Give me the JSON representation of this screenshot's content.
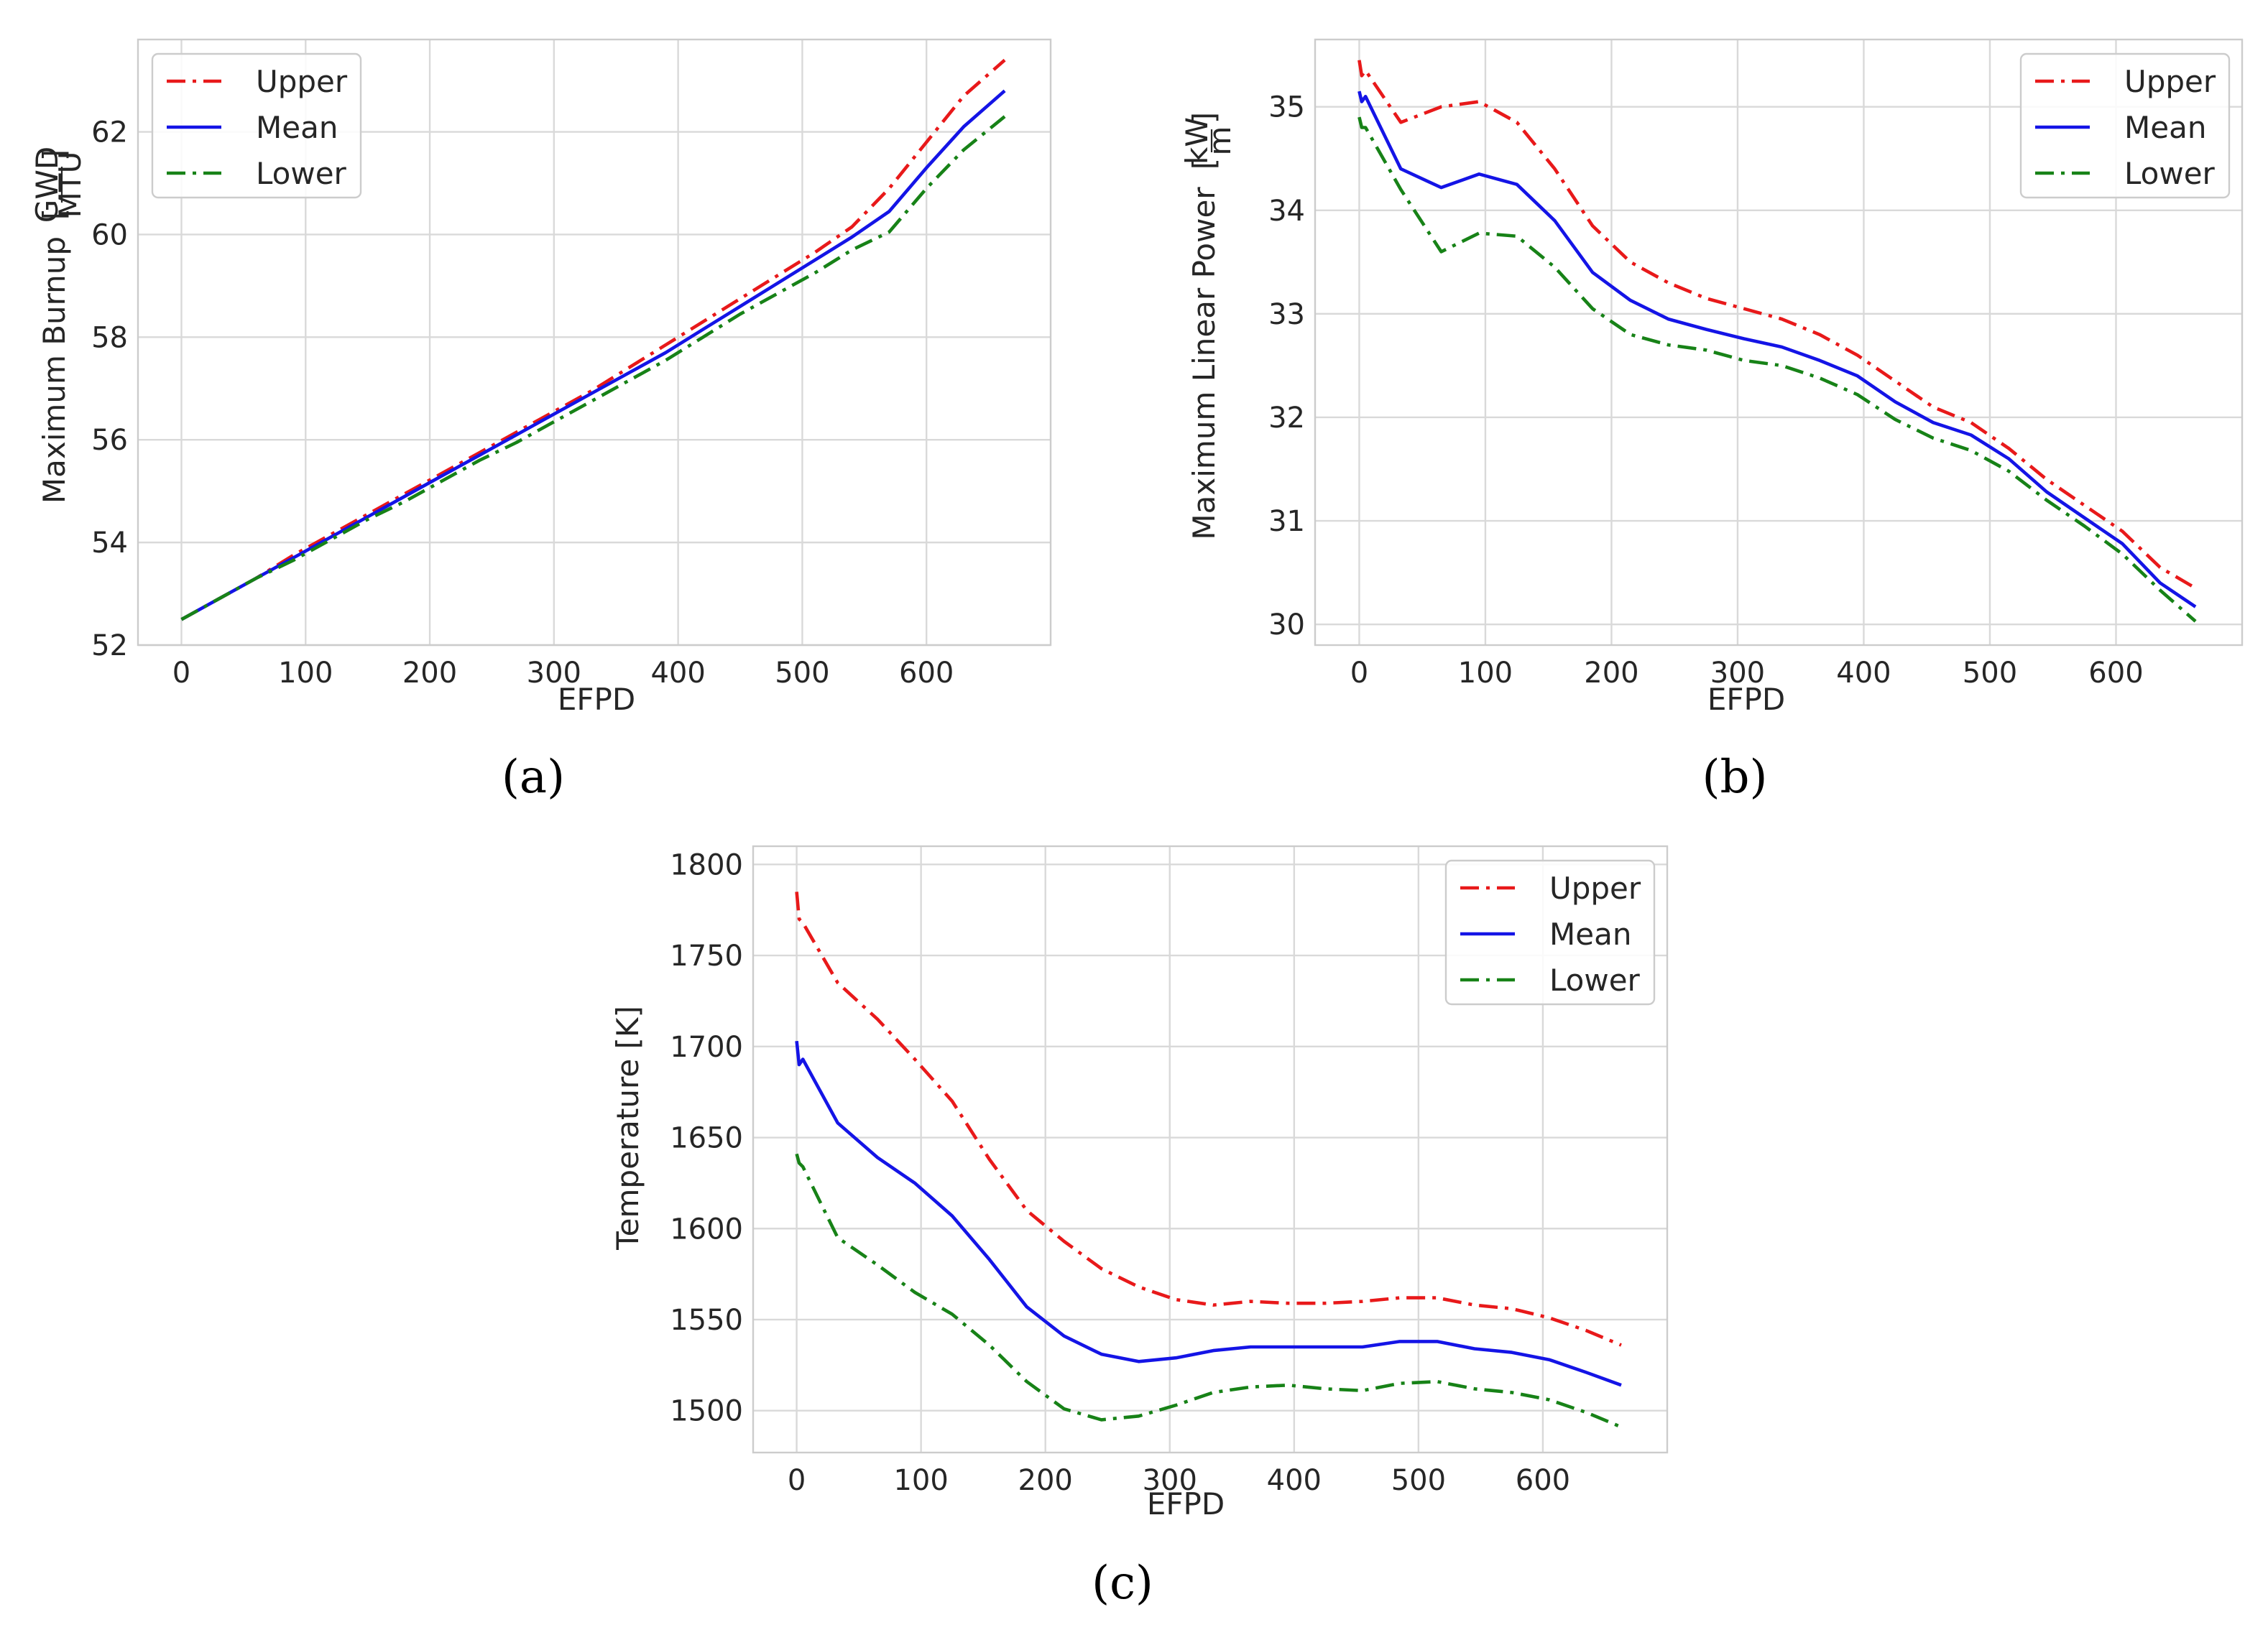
{
  "colors": {
    "upper": "#e8191a",
    "mean": "#1414e6",
    "lower": "#178217"
  },
  "chart_data": [
    {
      "id": "a",
      "type": "line",
      "caption": "(a)",
      "xlabel": "EFPD",
      "ylabel": "Maximum Burnup",
      "yunit_num": "GWD",
      "yunit_den": "MTU",
      "xlim": [
        -35,
        700
      ],
      "ylim": [
        52,
        63.8
      ],
      "xticks": [
        0,
        100,
        200,
        300,
        400,
        500,
        600
      ],
      "yticks": [
        52,
        54,
        56,
        58,
        60,
        62
      ],
      "legend": {
        "position": "top-left",
        "labels": [
          "Upper",
          "Mean",
          "Lower"
        ]
      },
      "x": [
        0,
        30,
        60,
        90,
        120,
        150,
        180,
        210,
        240,
        270,
        300,
        330,
        360,
        390,
        420,
        450,
        480,
        510,
        540,
        570,
        600,
        630,
        663
      ],
      "series": [
        {
          "name": "Upper",
          "style": "dashdot",
          "values": [
            52.5,
            52.9,
            53.3,
            53.75,
            54.15,
            54.55,
            54.95,
            55.35,
            55.75,
            56.15,
            56.55,
            56.95,
            57.4,
            57.85,
            58.3,
            58.75,
            59.2,
            59.65,
            60.15,
            60.9,
            61.8,
            62.7,
            63.4
          ]
        },
        {
          "name": "Mean",
          "style": "solid",
          "values": [
            52.5,
            52.9,
            53.3,
            53.7,
            54.1,
            54.5,
            54.9,
            55.3,
            55.7,
            56.1,
            56.5,
            56.9,
            57.3,
            57.7,
            58.15,
            58.6,
            59.05,
            59.5,
            59.95,
            60.45,
            61.3,
            62.1,
            62.8
          ]
        },
        {
          "name": "Lower",
          "style": "dashdot",
          "values": [
            52.5,
            52.9,
            53.3,
            53.65,
            54.05,
            54.45,
            54.8,
            55.2,
            55.6,
            55.95,
            56.35,
            56.75,
            57.15,
            57.55,
            58.0,
            58.45,
            58.85,
            59.25,
            59.7,
            60.05,
            60.9,
            61.65,
            62.3
          ]
        }
      ]
    },
    {
      "id": "b",
      "type": "line",
      "caption": "(b)",
      "xlabel": "EFPD",
      "ylabel": "Maximum Linear Power",
      "yunit_num": "kW",
      "yunit_den": "m",
      "xlim": [
        -35,
        700
      ],
      "ylim": [
        29.8,
        35.65
      ],
      "xticks": [
        0,
        100,
        200,
        300,
        400,
        500,
        600
      ],
      "yticks": [
        30,
        31,
        32,
        33,
        34,
        35
      ],
      "legend": {
        "position": "top-right",
        "labels": [
          "Upper",
          "Mean",
          "Lower"
        ]
      },
      "x": [
        0,
        2,
        5,
        33,
        65,
        95,
        125,
        155,
        185,
        215,
        245,
        275,
        305,
        335,
        365,
        395,
        425,
        455,
        485,
        515,
        545,
        575,
        605,
        635,
        663
      ],
      "series": [
        {
          "name": "Upper",
          "style": "dashdot",
          "values": [
            35.45,
            35.3,
            35.35,
            34.85,
            35.0,
            35.05,
            34.85,
            34.4,
            33.85,
            33.5,
            33.3,
            33.15,
            33.05,
            32.95,
            32.8,
            32.6,
            32.35,
            32.1,
            31.95,
            31.7,
            31.4,
            31.15,
            30.9,
            30.55,
            30.35
          ]
        },
        {
          "name": "Mean",
          "style": "solid",
          "values": [
            35.15,
            35.05,
            35.1,
            34.4,
            34.22,
            34.35,
            34.25,
            33.9,
            33.4,
            33.13,
            32.95,
            32.85,
            32.76,
            32.68,
            32.55,
            32.4,
            32.15,
            31.95,
            31.83,
            31.6,
            31.28,
            31.03,
            30.78,
            30.4,
            30.17
          ]
        },
        {
          "name": "Lower",
          "style": "dashdot",
          "values": [
            34.9,
            34.8,
            34.8,
            34.2,
            33.6,
            33.78,
            33.75,
            33.45,
            33.05,
            32.8,
            32.7,
            32.65,
            32.55,
            32.5,
            32.38,
            32.22,
            31.98,
            31.8,
            31.68,
            31.48,
            31.2,
            30.95,
            30.68,
            30.33,
            30.03
          ]
        }
      ]
    },
    {
      "id": "c",
      "type": "line",
      "caption": "(c)",
      "xlabel": "EFPD",
      "ylabel": "Temperature [K]",
      "yunit_num": "",
      "yunit_den": "",
      "xlim": [
        -35,
        700
      ],
      "ylim": [
        1477,
        1810
      ],
      "xticks": [
        0,
        100,
        200,
        300,
        400,
        500,
        600
      ],
      "yticks": [
        1500,
        1550,
        1600,
        1650,
        1700,
        1750,
        1800
      ],
      "legend": {
        "position": "top-right",
        "labels": [
          "Upper",
          "Mean",
          "Lower"
        ]
      },
      "x": [
        0,
        2,
        5,
        33,
        65,
        95,
        125,
        155,
        185,
        215,
        245,
        275,
        305,
        335,
        365,
        395,
        425,
        455,
        485,
        515,
        545,
        575,
        605,
        635,
        663
      ],
      "series": [
        {
          "name": "Upper",
          "style": "dashdot",
          "values": [
            1785,
            1770,
            1768,
            1735,
            1715,
            1693,
            1670,
            1638,
            1610,
            1593,
            1578,
            1568,
            1561,
            1558,
            1560,
            1559,
            1559,
            1560,
            1562,
            1562,
            1558,
            1556,
            1551,
            1544,
            1536
          ]
        },
        {
          "name": "Mean",
          "style": "solid",
          "values": [
            1703,
            1690,
            1693,
            1658,
            1639,
            1625,
            1607,
            1583,
            1557,
            1541,
            1531,
            1527,
            1529,
            1533,
            1535,
            1535,
            1535,
            1535,
            1538,
            1538,
            1534,
            1532,
            1528,
            1521,
            1514
          ]
        },
        {
          "name": "Lower",
          "style": "dashdot",
          "values": [
            1641,
            1636,
            1634,
            1595,
            1580,
            1565,
            1553,
            1536,
            1516,
            1501,
            1495,
            1497,
            1503,
            1510,
            1513,
            1514,
            1512,
            1511,
            1515,
            1516,
            1512,
            1510,
            1506,
            1499,
            1491
          ]
        }
      ]
    }
  ]
}
